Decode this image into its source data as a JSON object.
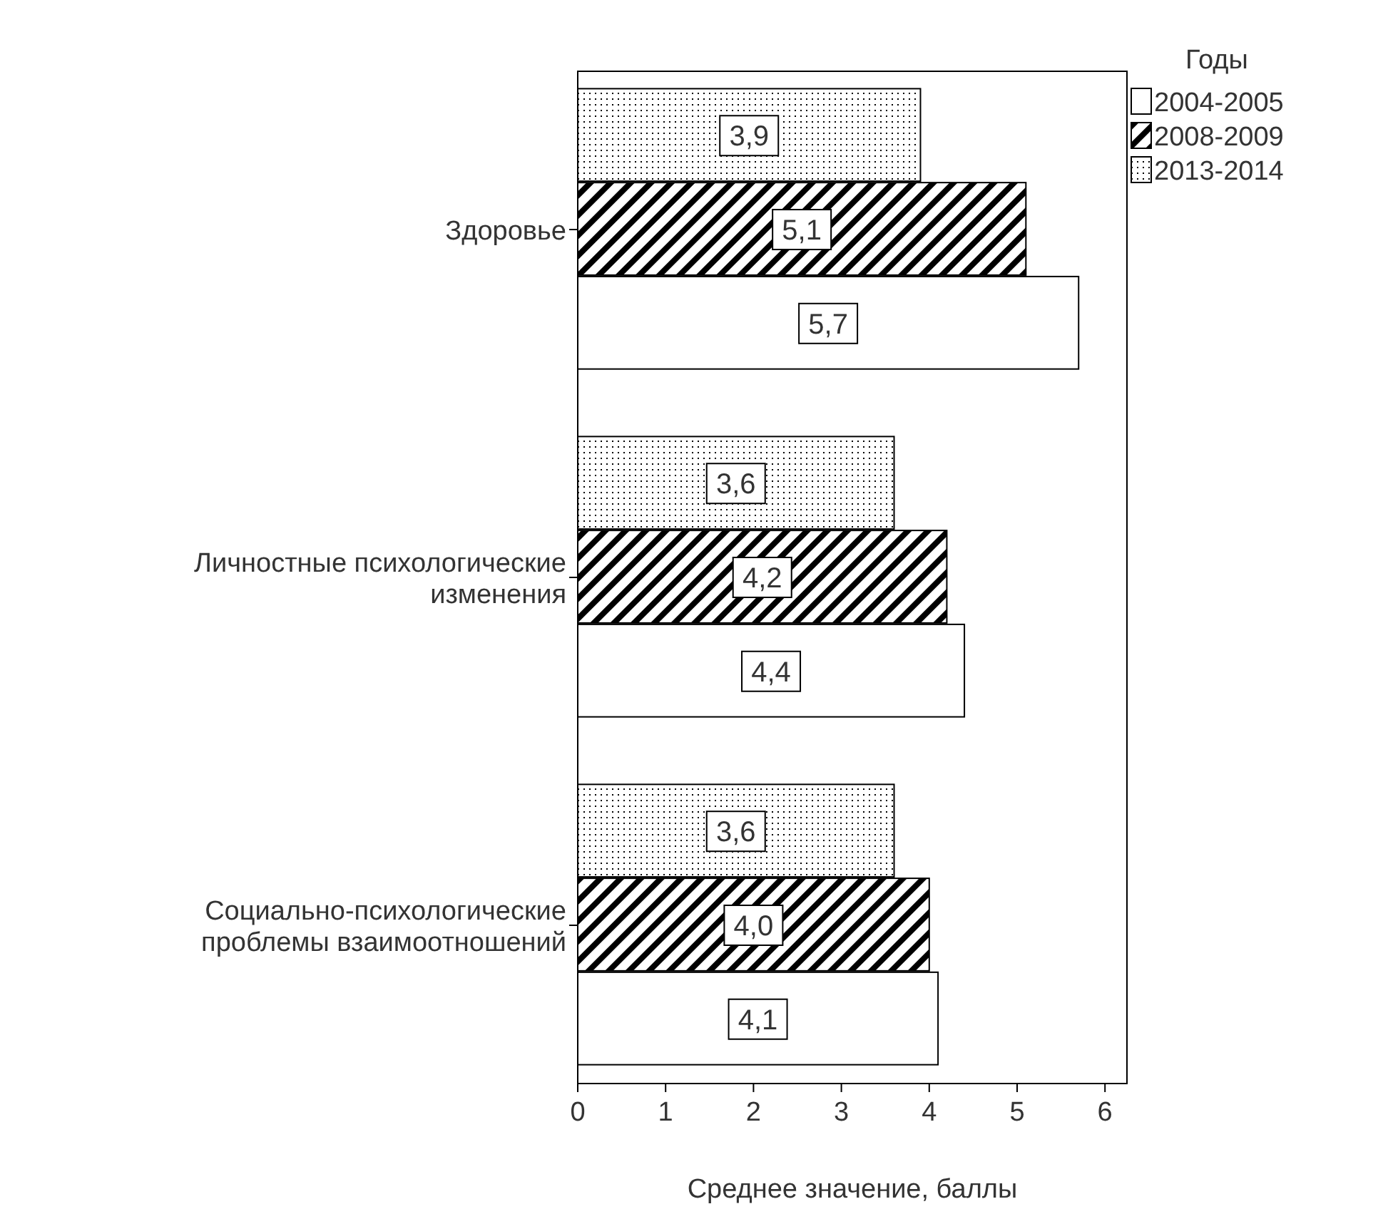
{
  "chart_data": {
    "type": "bar",
    "orientation": "horizontal",
    "xlabel": "Среднее значение, баллы",
    "legend_title": "Годы",
    "legend": "top right",
    "grid": false,
    "categories": [
      "Здоровье",
      "Личностные психологические\nизменения",
      "Социально-психологические\nпроблемы взаимоотношений"
    ],
    "xlim": [
      0,
      6.25
    ],
    "xticks": [
      0,
      1,
      2,
      3,
      4,
      5,
      6
    ],
    "series": [
      {
        "name": "2004-2005",
        "color": "#ffffff",
        "values": [
          5.7,
          4.4,
          4.1
        ],
        "value_labels": [
          "5,7",
          "4,4",
          "4,1"
        ]
      },
      {
        "name": "2008-2009",
        "color": "#000000",
        "values": [
          5.1,
          4.2,
          4.0
        ],
        "value_labels": [
          "5,1",
          "4,2",
          "4,0"
        ]
      },
      {
        "name": "2013-2014",
        "color": "#000000",
        "values": [
          3.9,
          3.6,
          3.6
        ],
        "value_labels": [
          "3,9",
          "3,6",
          "3,6"
        ]
      }
    ]
  }
}
